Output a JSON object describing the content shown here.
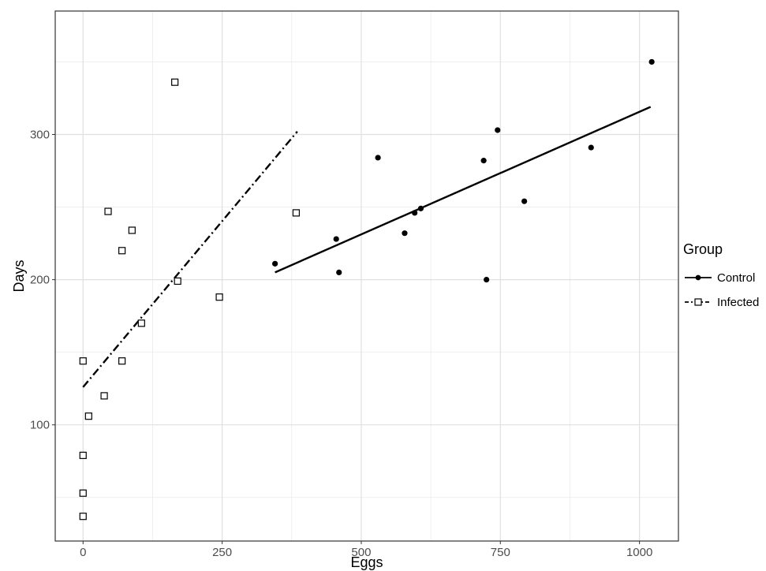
{
  "chart_data": {
    "type": "scatter",
    "title": "",
    "xlabel": "Eggs",
    "ylabel": "Days",
    "xlim": [
      -50,
      1070
    ],
    "ylim": [
      20,
      385
    ],
    "x_ticks": [
      0,
      250,
      500,
      750,
      1000
    ],
    "x_tick_labels": [
      "0",
      "250",
      "500",
      "750",
      "1000"
    ],
    "y_ticks": [
      100,
      200,
      300
    ],
    "y_tick_labels": [
      "100",
      "200",
      "300"
    ],
    "grid": true,
    "legend": {
      "title": "Group",
      "placement": "right"
    },
    "series": [
      {
        "name": "Control",
        "marker": "filled-circle",
        "line_style": "solid",
        "color": "#000000",
        "points": [
          [
            345,
            211
          ],
          [
            455,
            228
          ],
          [
            460,
            205
          ],
          [
            530,
            284
          ],
          [
            578,
            232
          ],
          [
            596,
            246
          ],
          [
            607,
            249
          ],
          [
            720,
            282
          ],
          [
            725,
            200
          ],
          [
            745,
            303
          ],
          [
            793,
            254
          ],
          [
            913,
            291
          ],
          [
            1022,
            350
          ]
        ],
        "fit": [
          [
            345,
            205
          ],
          [
            1020,
            319
          ]
        ]
      },
      {
        "name": "Infected",
        "marker": "open-square",
        "line_style": "dashdot",
        "color": "#000000",
        "points": [
          [
            0,
            144
          ],
          [
            0,
            79
          ],
          [
            0,
            53
          ],
          [
            0,
            37
          ],
          [
            10,
            106
          ],
          [
            38,
            120
          ],
          [
            45,
            247
          ],
          [
            70,
            220
          ],
          [
            70,
            144
          ],
          [
            88,
            234
          ],
          [
            105,
            170
          ],
          [
            165,
            336
          ],
          [
            170,
            199
          ],
          [
            245,
            188
          ],
          [
            383,
            246
          ]
        ],
        "fit": [
          [
            0,
            126
          ],
          [
            385,
            302
          ]
        ]
      }
    ]
  }
}
